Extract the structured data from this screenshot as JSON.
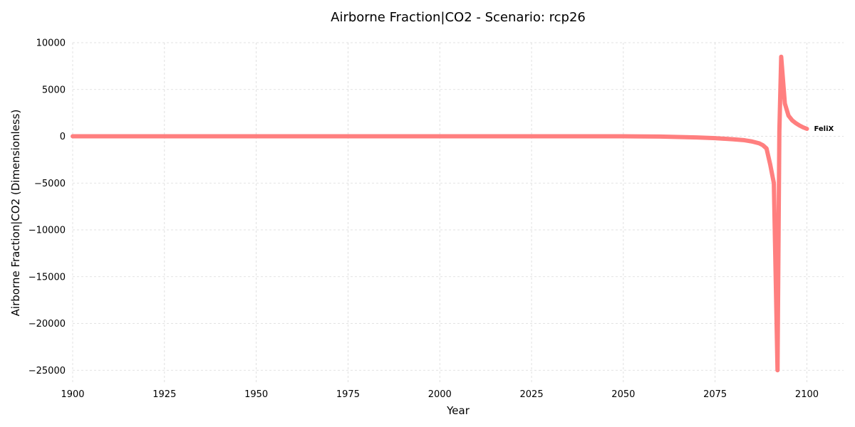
{
  "chart_data": {
    "type": "line",
    "title": "Airborne Fraction|CO2 - Scenario: rcp26",
    "xlabel": "Year",
    "ylabel": "Airborne Fraction|CO2 (Dimensionless)",
    "xlim": [
      1900,
      2110
    ],
    "ylim": [
      -26500,
      10000
    ],
    "xticks": [
      1900,
      1925,
      1950,
      1975,
      2000,
      2025,
      2050,
      2075,
      2100
    ],
    "xtick_labels": [
      "1900",
      "1925",
      "1950",
      "1975",
      "2000",
      "2025",
      "2050",
      "2075",
      "2100"
    ],
    "yticks": [
      10000,
      5000,
      0,
      -5000,
      -10000,
      -15000,
      -20000,
      -25000
    ],
    "ytick_labels": [
      "10000",
      "5000",
      "0",
      "−5000",
      "−10000",
      "−15000",
      "−20000",
      "−25000"
    ],
    "grid": true,
    "series": [
      {
        "name": "FeliX",
        "color": "#ff7f7f",
        "x": [
          1900,
          1925,
          1950,
          1975,
          2000,
          2025,
          2050,
          2060,
          2070,
          2075,
          2080,
          2083,
          2085,
          2087,
          2088,
          2089,
          2090,
          2091,
          2091.5,
          2092,
          2092.5,
          2093,
          2094,
          2095,
          2096,
          2097,
          2098,
          2099,
          2100
        ],
        "y": [
          0,
          0,
          0,
          0,
          0,
          0,
          0,
          -30,
          -120,
          -200,
          -320,
          -420,
          -550,
          -750,
          -950,
          -1300,
          -3000,
          -5000,
          -15000,
          -25000,
          500,
          8500,
          3500,
          2200,
          1700,
          1400,
          1150,
          950,
          800
        ]
      }
    ]
  }
}
